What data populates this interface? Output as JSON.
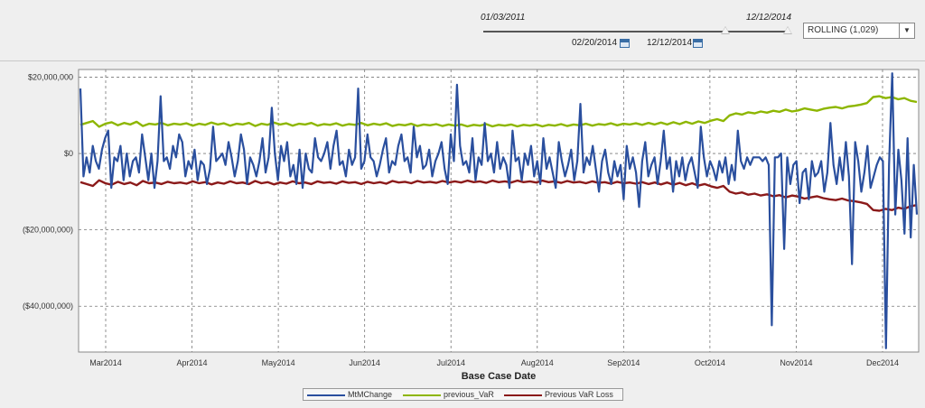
{
  "range_slider": {
    "start_label": "01/03/2011",
    "end_label": "12/12/2014",
    "selected_start": "02/20/2014",
    "selected_end": "12/12/2014"
  },
  "dropdown": {
    "value": "ROLLING (1,029)"
  },
  "chart_data": {
    "type": "line",
    "xlabel": "Base Case Date",
    "ylabel": "",
    "ylim": [
      -52000000,
      22000000
    ],
    "yticks": [
      20000000,
      0,
      -20000000,
      -40000000
    ],
    "ytick_labels": [
      "$20,000,000",
      "$0",
      "($20,000,000)",
      "($40,000,000)"
    ],
    "xticks": [
      "Mar2014",
      "Apr2014",
      "May2014",
      "Jun2014",
      "Jul2014",
      "Aug2014",
      "Sep2014",
      "Oct2014",
      "Nov2014",
      "Dec2014"
    ],
    "grid": true,
    "legend_position": "bottom",
    "series": [
      {
        "name": "MtMChange",
        "color": "#2a4f9e",
        "values": [
          17000000,
          -6000000,
          -1000000,
          -5000000,
          2000000,
          -2000000,
          -4000000,
          1000000,
          4000000,
          6000000,
          -9000000,
          -1000000,
          -2000000,
          2000000,
          -7000000,
          0,
          -6000000,
          -2000000,
          -1000000,
          -5000000,
          5000000,
          -1000000,
          -7000000,
          0,
          -9000000,
          -2000000,
          15000000,
          -2000000,
          -1000000,
          -4000000,
          2000000,
          -1000000,
          5000000,
          3000000,
          -6000000,
          -2000000,
          -4000000,
          1000000,
          -7000000,
          -2000000,
          -3000000,
          -8000000,
          -4000000,
          7000000,
          -2000000,
          -1000000,
          0,
          -3000000,
          3000000,
          -1000000,
          -6000000,
          -2000000,
          5000000,
          1000000,
          -8000000,
          -1000000,
          -3000000,
          -6000000,
          -2000000,
          4000000,
          -5000000,
          -1000000,
          12000000,
          0,
          -7000000,
          2000000,
          -2000000,
          3000000,
          -6000000,
          -3000000,
          -8000000,
          1000000,
          -9000000,
          0,
          -4000000,
          -5000000,
          4000000,
          -1000000,
          -2000000,
          0,
          3000000,
          -4000000,
          2000000,
          6000000,
          -3000000,
          -2000000,
          -6000000,
          1000000,
          -3000000,
          -1000000,
          17000000,
          -4000000,
          -2000000,
          5000000,
          -1000000,
          -2000000,
          -6000000,
          -3000000,
          1000000,
          4000000,
          -5000000,
          -2000000,
          -3000000,
          2000000,
          5000000,
          -2000000,
          -1000000,
          -5000000,
          7000000,
          -1000000,
          2000000,
          -4000000,
          -3000000,
          1000000,
          -6000000,
          -2000000,
          0,
          3000000,
          -4000000,
          -8000000,
          5000000,
          -2000000,
          18000000,
          2000000,
          -3000000,
          -2000000,
          -5000000,
          4000000,
          -7000000,
          -1000000,
          -3000000,
          8000000,
          -2000000,
          0,
          -5000000,
          3000000,
          -4000000,
          -1000000,
          -3000000,
          -9000000,
          6000000,
          -2000000,
          -1000000,
          -7000000,
          0,
          -3000000,
          2000000,
          -6000000,
          -2000000,
          -8000000,
          4000000,
          -4000000,
          -1000000,
          -5000000,
          -9000000,
          3000000,
          -2000000,
          -6000000,
          -3000000,
          1000000,
          -7000000,
          -2000000,
          13000000,
          -5000000,
          -1000000,
          -3000000,
          2000000,
          -4000000,
          -10000000,
          -2000000,
          1000000,
          -5000000,
          -8000000,
          -2000000,
          -6000000,
          -3000000,
          -12000000,
          2000000,
          -4000000,
          -1000000,
          -5000000,
          -14000000,
          -2000000,
          3000000,
          -6000000,
          -3000000,
          -1000000,
          -8000000,
          -2000000,
          6000000,
          -4000000,
          -1000000,
          -10000000,
          -2000000,
          -6000000,
          -1000000,
          -7000000,
          -3000000,
          -1000000,
          -5000000,
          -9000000,
          7000000,
          -1000000,
          -6000000,
          -2000000,
          -4000000,
          -7000000,
          -2000000,
          -5000000,
          -1000000,
          -8000000,
          -3000000,
          -7000000,
          6000000,
          -2000000,
          -4000000,
          -1000000,
          -3000000,
          -1000000,
          -1000000,
          -1000000,
          -2000000,
          -1000000,
          -3000000,
          -45000000,
          -1000000,
          -1000000,
          0,
          -25000000,
          -1000000,
          -8000000,
          -3000000,
          -2000000,
          -13000000,
          -5000000,
          -4000000,
          -12000000,
          -2000000,
          -6000000,
          -5000000,
          -2000000,
          -10000000,
          -5000000,
          8000000,
          -3000000,
          -8000000,
          -1000000,
          -7000000,
          3000000,
          -6000000,
          -29000000,
          3000000,
          -2000000,
          -10000000,
          -5000000,
          2000000,
          -9000000,
          -6000000,
          -3000000,
          -1000000,
          -2000000,
          -51000000,
          -3000000,
          21000000,
          -16000000,
          1000000,
          -7000000,
          -21000000,
          4000000,
          -22000000,
          -3000000,
          -16000000
        ],
        "points_per_window": 270
      },
      {
        "name": "previous_VaR",
        "color": "#8db600",
        "values": [
          7500000,
          8000000,
          8500000,
          7000000,
          7800000,
          8200000,
          7400000,
          8000000,
          7600000,
          8300000,
          7200000,
          7800000,
          7600000,
          8000000,
          7400000,
          7800000,
          7600000,
          7900000,
          7300000,
          7800000,
          7500000,
          8100000,
          7600000,
          7900000,
          7300000,
          7800000,
          7600000,
          8000000,
          7200000,
          7800000,
          7500000,
          8100000,
          7600000,
          7900000,
          7300000,
          7800000,
          7600000,
          8000000,
          7300000,
          7700000,
          7500000,
          7900000,
          7300000,
          7700000,
          7500000,
          8000000,
          7400000,
          7800000,
          7500000,
          7900000,
          7200000,
          7600000,
          7400000,
          7800000,
          7200000,
          7600000,
          7400000,
          7700000,
          7200000,
          7600000,
          7300000,
          7600000,
          7100000,
          7500000,
          7300000,
          7700000,
          7100000,
          7500000,
          7300000,
          7600000,
          7100000,
          7500000,
          7300000,
          7600000,
          7100000,
          7500000,
          7300000,
          7700000,
          7200000,
          7600000,
          7400000,
          7800000,
          7300000,
          7700000,
          7500000,
          7900000,
          7400000,
          7800000,
          7600000,
          7900000,
          7500000,
          8000000,
          7600000,
          8100000,
          7600000,
          8200000,
          7700000,
          8300000,
          7800000,
          8400000,
          8000000,
          8600000,
          9000000,
          8500000,
          10000000,
          10500000,
          10200000,
          10800000,
          10500000,
          11000000,
          10700000,
          11200000,
          10900000,
          11500000,
          11000000,
          11300000,
          11800000,
          11500000,
          11200000,
          11700000,
          12000000,
          12200000,
          11800000,
          12300000,
          12500000,
          12800000,
          13200000,
          14800000,
          15000000,
          14500000,
          14800000,
          14200000,
          14500000,
          13800000,
          13500000
        ],
        "points_per_window": 135
      },
      {
        "name": "Previous VaR Loss",
        "color": "#8b1a1a",
        "values": [
          -7500000,
          -8000000,
          -8500000,
          -7000000,
          -7800000,
          -8200000,
          -7400000,
          -8000000,
          -7600000,
          -8300000,
          -7200000,
          -7800000,
          -7600000,
          -8000000,
          -7400000,
          -7800000,
          -7600000,
          -7900000,
          -7300000,
          -7800000,
          -7500000,
          -8100000,
          -7600000,
          -7900000,
          -7300000,
          -7800000,
          -7600000,
          -8000000,
          -7200000,
          -7800000,
          -7500000,
          -8100000,
          -7600000,
          -7900000,
          -7300000,
          -7800000,
          -7600000,
          -8000000,
          -7300000,
          -7700000,
          -7500000,
          -7900000,
          -7300000,
          -7700000,
          -7500000,
          -8000000,
          -7400000,
          -7800000,
          -7500000,
          -7900000,
          -7200000,
          -7600000,
          -7400000,
          -7800000,
          -7200000,
          -7600000,
          -7400000,
          -7700000,
          -7200000,
          -7600000,
          -7300000,
          -7600000,
          -7100000,
          -7500000,
          -7300000,
          -7700000,
          -7100000,
          -7500000,
          -7300000,
          -7600000,
          -7100000,
          -7500000,
          -7300000,
          -7600000,
          -7100000,
          -7500000,
          -7300000,
          -7700000,
          -7200000,
          -7600000,
          -7400000,
          -7800000,
          -7300000,
          -7700000,
          -7500000,
          -7900000,
          -7400000,
          -7800000,
          -7600000,
          -7900000,
          -7500000,
          -8000000,
          -7600000,
          -8100000,
          -7600000,
          -8200000,
          -7700000,
          -8300000,
          -7800000,
          -8400000,
          -8000000,
          -8600000,
          -9000000,
          -8500000,
          -10000000,
          -10500000,
          -10200000,
          -10800000,
          -10500000,
          -11000000,
          -10700000,
          -11200000,
          -10900000,
          -11500000,
          -11000000,
          -11300000,
          -11800000,
          -11500000,
          -11200000,
          -11700000,
          -12000000,
          -12200000,
          -11800000,
          -12300000,
          -12500000,
          -12800000,
          -13200000,
          -14800000,
          -15000000,
          -14500000,
          -14800000,
          -14200000,
          -14500000,
          -13800000,
          -13500000
        ],
        "points_per_window": 135
      }
    ]
  }
}
